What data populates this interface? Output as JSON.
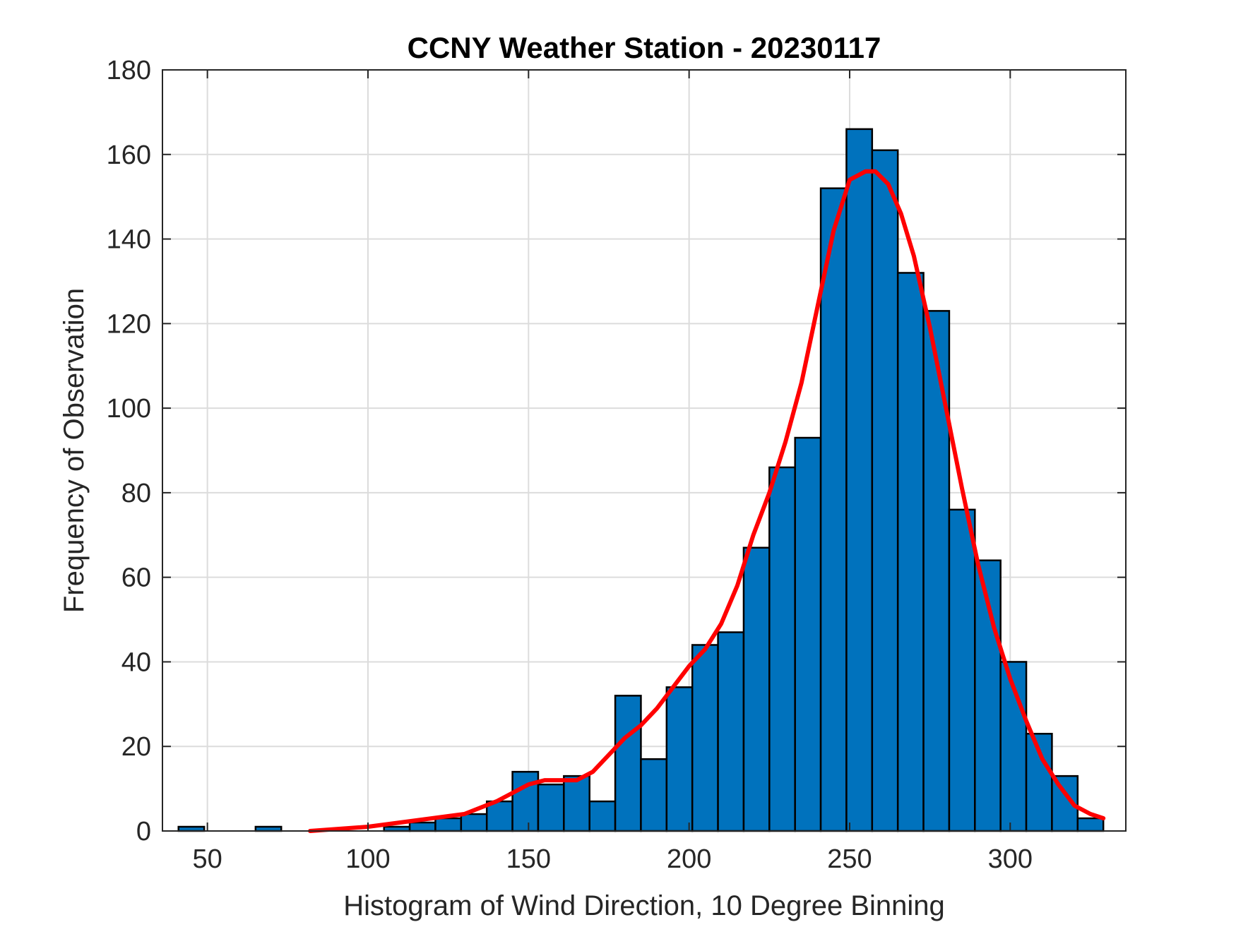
{
  "chart_data": {
    "type": "bar",
    "title": "CCNY Weather Station - 20230117",
    "xlabel": "Histogram of Wind Direction, 10 Degree Binning",
    "ylabel": "Frequency of Observation",
    "xlim": [
      36,
      336
    ],
    "ylim": [
      0,
      180
    ],
    "xticks": [
      50,
      100,
      150,
      200,
      250,
      300
    ],
    "yticks": [
      0,
      20,
      40,
      60,
      80,
      100,
      120,
      140,
      160,
      180
    ],
    "grid": true,
    "bar_color": "#0072bd",
    "bar_edge_color": "#000000",
    "curve_color": "#ff0000",
    "bins": [
      {
        "x0": 41,
        "x1": 49,
        "count": 1
      },
      {
        "x0": 65,
        "x1": 73,
        "count": 1
      },
      {
        "x0": 105,
        "x1": 113,
        "count": 1
      },
      {
        "x0": 113,
        "x1": 121,
        "count": 2
      },
      {
        "x0": 121,
        "x1": 129,
        "count": 3
      },
      {
        "x0": 129,
        "x1": 137,
        "count": 4
      },
      {
        "x0": 137,
        "x1": 145,
        "count": 7
      },
      {
        "x0": 145,
        "x1": 153,
        "count": 14
      },
      {
        "x0": 153,
        "x1": 161,
        "count": 11
      },
      {
        "x0": 161,
        "x1": 169,
        "count": 13
      },
      {
        "x0": 169,
        "x1": 177,
        "count": 7
      },
      {
        "x0": 177,
        "x1": 185,
        "count": 32
      },
      {
        "x0": 185,
        "x1": 193,
        "count": 17
      },
      {
        "x0": 193,
        "x1": 201,
        "count": 34
      },
      {
        "x0": 201,
        "x1": 209,
        "count": 44
      },
      {
        "x0": 209,
        "x1": 217,
        "count": 47
      },
      {
        "x0": 217,
        "x1": 225,
        "count": 67
      },
      {
        "x0": 225,
        "x1": 233,
        "count": 86
      },
      {
        "x0": 233,
        "x1": 241,
        "count": 93
      },
      {
        "x0": 241,
        "x1": 249,
        "count": 152
      },
      {
        "x0": 249,
        "x1": 257,
        "count": 166
      },
      {
        "x0": 257,
        "x1": 265,
        "count": 161
      },
      {
        "x0": 265,
        "x1": 273,
        "count": 132
      },
      {
        "x0": 273,
        "x1": 281,
        "count": 123
      },
      {
        "x0": 281,
        "x1": 289,
        "count": 76
      },
      {
        "x0": 289,
        "x1": 297,
        "count": 64
      },
      {
        "x0": 297,
        "x1": 305,
        "count": 40
      },
      {
        "x0": 305,
        "x1": 313,
        "count": 23
      },
      {
        "x0": 313,
        "x1": 321,
        "count": 13
      },
      {
        "x0": 321,
        "x1": 329,
        "count": 3
      }
    ],
    "curve": {
      "x": [
        82,
        100,
        110,
        120,
        130,
        140,
        145,
        150,
        155,
        160,
        165,
        170,
        175,
        180,
        185,
        190,
        195,
        200,
        205,
        210,
        215,
        220,
        225,
        230,
        235,
        240,
        245,
        250,
        255,
        258,
        262,
        266,
        270,
        275,
        280,
        285,
        290,
        295,
        300,
        305,
        310,
        315,
        320,
        325,
        329
      ],
      "y": [
        0,
        1,
        2,
        3,
        4,
        7,
        9,
        11,
        12,
        12,
        12,
        14,
        18,
        22,
        25,
        29,
        34,
        39,
        43,
        49,
        58,
        70,
        80,
        92,
        106,
        124,
        142,
        154,
        156,
        156,
        153,
        146,
        136,
        119,
        100,
        81,
        63,
        48,
        36,
        26,
        17,
        11,
        6,
        4,
        3
      ]
    }
  }
}
